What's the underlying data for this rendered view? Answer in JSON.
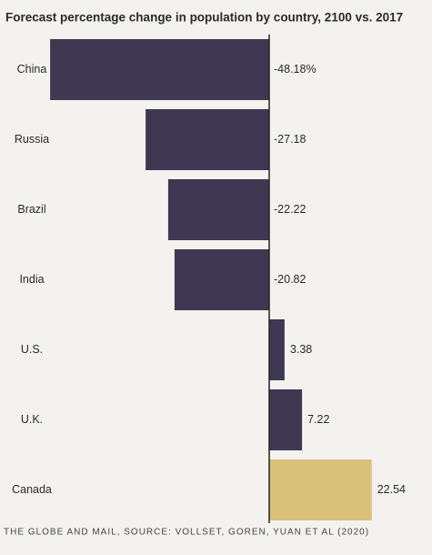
{
  "chart_data": {
    "type": "hbar",
    "title": "Forecast percentage change in population by country, 2100 vs. 2017",
    "categories": [
      "China",
      "Russia",
      "Brazil",
      "India",
      "U.S.",
      "U.K.",
      "Canada"
    ],
    "values": [
      -48.18,
      -27.18,
      -22.22,
      -20.82,
      3.38,
      7.22,
      22.54
    ],
    "value_labels": [
      "-48.18%",
      "-27.18",
      "-22.22",
      "-20.82",
      "3.38",
      "7.22",
      "22.54"
    ],
    "colors": [
      "#3f3852",
      "#3f3852",
      "#3f3852",
      "#3f3852",
      "#3f3852",
      "#3f3852",
      "#d9c17c"
    ],
    "source": "THE GLOBE AND MAIL, SOURCE: VOLLSET, GOREN, YUAN ET AL (2020)"
  }
}
